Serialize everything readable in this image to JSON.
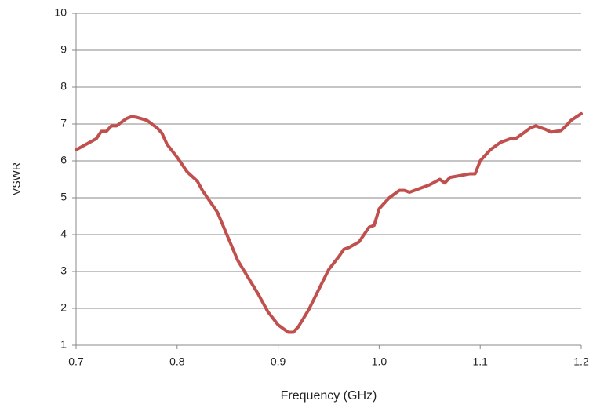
{
  "chart_data": {
    "type": "line",
    "x_label": "Frequency (GHz)",
    "y_label": "VSWR",
    "x": [
      0.7,
      0.71,
      0.72,
      0.725,
      0.73,
      0.735,
      0.74,
      0.75,
      0.755,
      0.76,
      0.77,
      0.78,
      0.785,
      0.79,
      0.8,
      0.81,
      0.82,
      0.825,
      0.83,
      0.84,
      0.85,
      0.86,
      0.87,
      0.88,
      0.89,
      0.9,
      0.91,
      0.915,
      0.92,
      0.93,
      0.94,
      0.95,
      0.96,
      0.965,
      0.97,
      0.98,
      0.99,
      0.995,
      1.0,
      1.01,
      1.02,
      1.025,
      1.03,
      1.04,
      1.05,
      1.06,
      1.065,
      1.07,
      1.08,
      1.09,
      1.095,
      1.1,
      1.11,
      1.12,
      1.125,
      1.13,
      1.135,
      1.14,
      1.15,
      1.155,
      1.16,
      1.165,
      1.17,
      1.18,
      1.185,
      1.19,
      1.2
    ],
    "series": [
      {
        "color": "#c0504d",
        "values": [
          6.3,
          6.45,
          6.6,
          6.8,
          6.8,
          6.95,
          6.95,
          7.15,
          7.2,
          7.18,
          7.1,
          6.9,
          6.75,
          6.45,
          6.1,
          5.7,
          5.45,
          5.2,
          5.0,
          4.6,
          3.95,
          3.3,
          2.85,
          2.4,
          1.9,
          1.55,
          1.35,
          1.35,
          1.5,
          1.95,
          2.5,
          3.05,
          3.4,
          3.6,
          3.65,
          3.8,
          4.2,
          4.25,
          4.7,
          5.0,
          5.2,
          5.2,
          5.15,
          5.25,
          5.35,
          5.5,
          5.4,
          5.55,
          5.6,
          5.65,
          5.65,
          6.0,
          6.3,
          6.5,
          6.55,
          6.6,
          6.6,
          6.7,
          6.9,
          6.95,
          6.9,
          6.85,
          6.78,
          6.82,
          6.95,
          7.1,
          7.28
        ]
      }
    ],
    "xlim": [
      0.7,
      1.2
    ],
    "xticks": [
      0.7,
      0.8,
      0.9,
      {
        "value": 1,
        "label": "1.0"
      },
      1.1,
      1.2
    ],
    "ylim": [
      1,
      10
    ],
    "yticks": [
      1,
      2,
      3,
      4,
      5,
      6,
      7,
      8,
      9,
      10
    ],
    "grid": true
  }
}
